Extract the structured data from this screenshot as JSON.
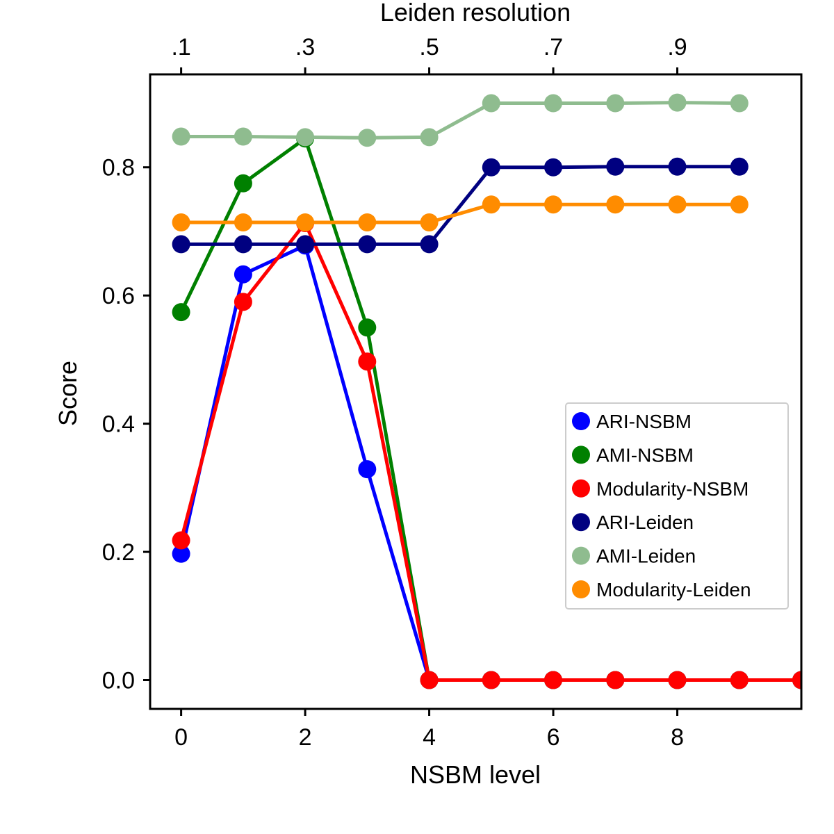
{
  "chart_data": {
    "type": "line",
    "xlabel": "NSBM level",
    "ylabel": "Score",
    "top_xlabel": "Leiden resolution",
    "xlim": [
      -0.5,
      10
    ],
    "ylim": [
      -0.045,
      0.945
    ],
    "xticks": [
      0,
      2,
      4,
      6,
      8
    ],
    "xtick_labels": [
      "0",
      "2",
      "4",
      "6",
      "8"
    ],
    "yticks": [
      0.0,
      0.2,
      0.4,
      0.6,
      0.8
    ],
    "ytick_labels": [
      "0.0",
      "0.2",
      "0.4",
      "0.6",
      "0.8"
    ],
    "top_xticks": [
      0,
      2,
      4,
      6,
      8
    ],
    "top_xtick_labels": [
      ".1",
      ".3",
      ".5",
      ".7",
      ".9"
    ],
    "legend_position": "center-right",
    "series": [
      {
        "name": "ARI-NSBM",
        "color": "#0000ff",
        "x": [
          0,
          1,
          2,
          3,
          4,
          5,
          6,
          7,
          8,
          9,
          10
        ],
        "values": [
          0.197,
          0.633,
          0.678,
          0.329,
          0,
          0,
          0,
          0,
          0,
          0,
          0
        ]
      },
      {
        "name": "AMI-NSBM",
        "color": "#008000",
        "x": [
          0,
          1,
          2,
          3,
          4,
          5,
          6,
          7,
          8,
          9,
          10
        ],
        "values": [
          0.574,
          0.775,
          0.845,
          0.55,
          0,
          0,
          0,
          0,
          0,
          0,
          0
        ]
      },
      {
        "name": "Modularity-NSBM",
        "color": "#ff0000",
        "x": [
          0,
          1,
          2,
          3,
          4,
          5,
          6,
          7,
          8,
          9,
          10
        ],
        "values": [
          0.218,
          0.59,
          0.713,
          0.497,
          0,
          0,
          0,
          0,
          0,
          0,
          0
        ]
      },
      {
        "name": "ARI-Leiden",
        "color": "#000080",
        "x": [
          0,
          1,
          2,
          3,
          4,
          5,
          6,
          7,
          8,
          9
        ],
        "values": [
          0.68,
          0.68,
          0.68,
          0.68,
          0.68,
          0.8,
          0.8,
          0.801,
          0.801,
          0.801
        ]
      },
      {
        "name": "AMI-Leiden",
        "color": "#8fbc8f",
        "x": [
          0,
          1,
          2,
          3,
          4,
          5,
          6,
          7,
          8,
          9
        ],
        "values": [
          0.848,
          0.848,
          0.847,
          0.846,
          0.847,
          0.9,
          0.9,
          0.9,
          0.901,
          0.9
        ]
      },
      {
        "name": "Modularity-Leiden",
        "color": "#ff8c00",
        "x": [
          0,
          1,
          2,
          3,
          4,
          5,
          6,
          7,
          8,
          9
        ],
        "values": [
          0.714,
          0.714,
          0.714,
          0.714,
          0.714,
          0.742,
          0.742,
          0.742,
          0.742,
          0.742
        ]
      }
    ]
  }
}
